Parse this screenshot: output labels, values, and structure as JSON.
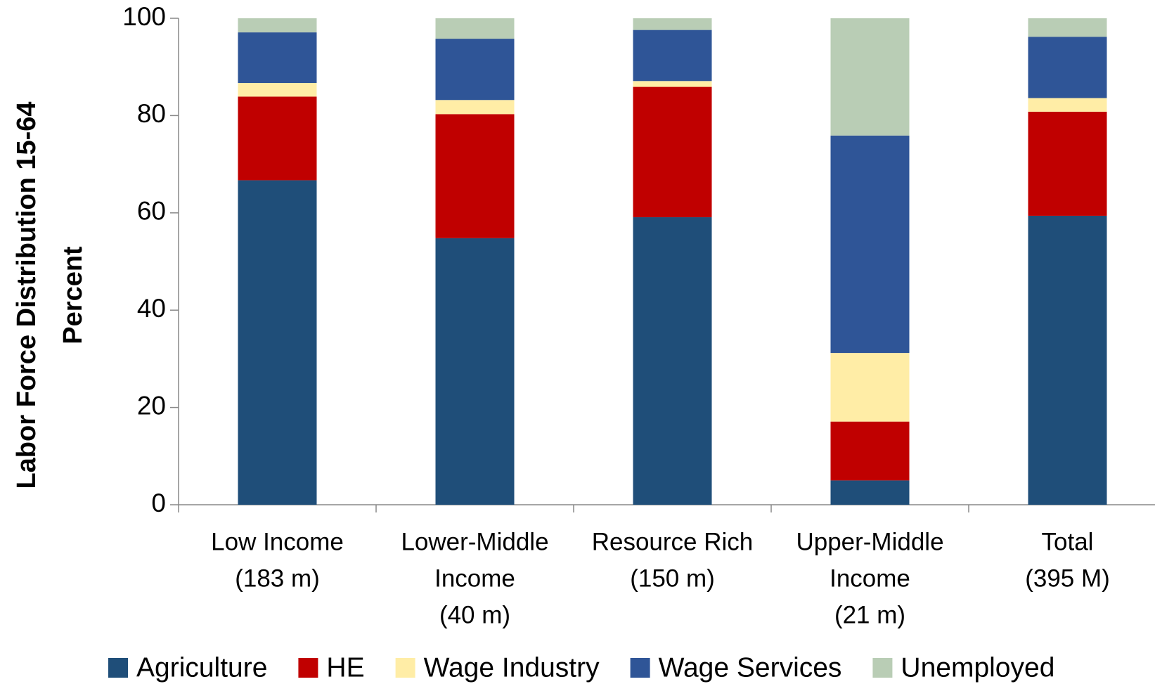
{
  "chart_data": {
    "type": "stacked_bar",
    "ylabel": [
      "Labor Force Distribution 15-64",
      "Percent"
    ],
    "categories": [
      [
        "Low Income",
        "(183 m)"
      ],
      [
        "Lower-Middle",
        "Income",
        "(40 m)"
      ],
      [
        "Resource Rich",
        "(150 m)"
      ],
      [
        "Upper-Middle",
        "Income",
        "(21 m)"
      ],
      [
        "Total",
        "(395 M)"
      ]
    ],
    "series": [
      {
        "name": "Agriculture",
        "color": "#1f4e79",
        "values": [
          66.7,
          54.8,
          59.1,
          5.0,
          59.4
        ]
      },
      {
        "name": "HE",
        "color": "#c00000",
        "values": [
          17.2,
          25.5,
          26.8,
          12.1,
          21.4
        ]
      },
      {
        "name": "Wage Industry",
        "color": "#ffeda6",
        "values": [
          2.8,
          2.9,
          1.2,
          14.1,
          2.8
        ]
      },
      {
        "name": "Wage Services",
        "color": "#2f5597",
        "values": [
          10.4,
          12.6,
          10.5,
          44.7,
          12.6
        ]
      },
      {
        "name": "Unemployed",
        "color": "#b9cdb5",
        "values": [
          2.9,
          4.2,
          2.4,
          24.1,
          3.8
        ]
      }
    ],
    "ylim": [
      0,
      100
    ],
    "yticks": [
      0,
      20,
      40,
      60,
      80,
      100
    ],
    "legend": "bottom"
  }
}
